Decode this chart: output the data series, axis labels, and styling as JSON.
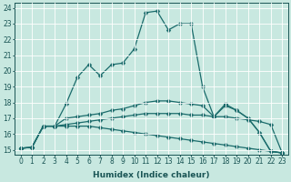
{
  "xlabel": "Humidex (Indice chaleur)",
  "xlim_min": -0.5,
  "xlim_max": 23.5,
  "ylim_min": 14.7,
  "ylim_max": 24.3,
  "xticks": [
    0,
    1,
    2,
    3,
    4,
    5,
    6,
    7,
    8,
    9,
    10,
    11,
    12,
    13,
    14,
    15,
    16,
    17,
    18,
    19,
    20,
    21,
    22,
    23
  ],
  "yticks": [
    15,
    16,
    17,
    18,
    19,
    20,
    21,
    22,
    23,
    24
  ],
  "background_color": "#c8e8e0",
  "grid_color": "#ffffff",
  "line_color": "#1a6b6b",
  "line1_y": [
    15.1,
    15.15,
    16.5,
    16.5,
    16.5,
    16.5,
    16.5,
    16.4,
    16.3,
    16.2,
    16.1,
    16.0,
    15.9,
    15.8,
    15.7,
    15.6,
    15.5,
    15.4,
    15.3,
    15.2,
    15.1,
    15.0,
    14.9,
    14.8
  ],
  "line2_y": [
    15.1,
    15.15,
    16.5,
    16.5,
    16.6,
    16.7,
    16.8,
    16.9,
    17.0,
    17.1,
    17.2,
    17.3,
    17.3,
    17.3,
    17.3,
    17.2,
    17.2,
    17.1,
    17.1,
    17.0,
    16.9,
    16.8,
    16.6,
    14.8
  ],
  "line3_y": [
    15.1,
    15.15,
    16.5,
    16.5,
    17.0,
    17.1,
    17.2,
    17.3,
    17.5,
    17.6,
    17.8,
    18.0,
    18.1,
    18.1,
    18.0,
    17.9,
    17.8,
    17.1,
    17.8,
    17.5,
    17.0,
    16.1,
    14.9,
    14.8
  ],
  "line4_y": [
    15.1,
    15.15,
    16.5,
    16.5,
    17.9,
    19.6,
    20.4,
    19.7,
    20.4,
    20.5,
    21.4,
    23.7,
    23.8,
    22.6,
    23.0,
    23.0,
    19.0,
    17.1,
    17.9,
    17.5,
    17.0,
    16.1,
    14.9,
    14.8
  ],
  "x": [
    0,
    1,
    2,
    3,
    4,
    5,
    6,
    7,
    8,
    9,
    10,
    11,
    12,
    13,
    14,
    15,
    16,
    17,
    18,
    19,
    20,
    21,
    22,
    23
  ],
  "marker_size": 2.5,
  "line_width": 0.9,
  "font_color": "#1a5555",
  "tick_fontsize": 5.5,
  "label_fontsize": 6.5
}
